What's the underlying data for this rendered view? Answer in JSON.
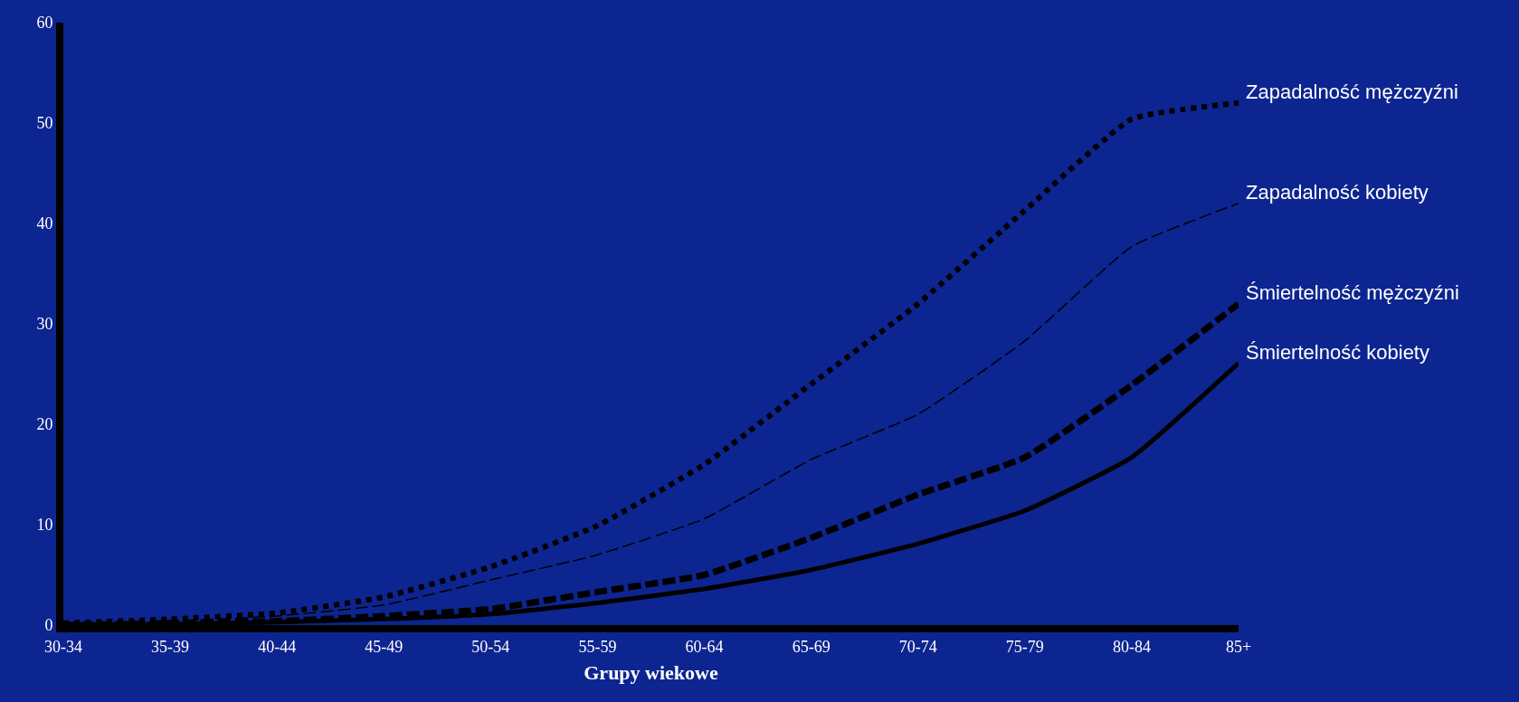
{
  "chart_data": {
    "type": "line",
    "xlabel": "Grupy wiekowe",
    "categories": [
      "30-34",
      "35-39",
      "40-44",
      "45-49",
      "50-54",
      "55-59",
      "60-64",
      "65-69",
      "70-74",
      "75-79",
      "80-84",
      "85+"
    ],
    "series": [
      {
        "name": "Zapadalność mężczyźni",
        "color": "#000000",
        "line_style": "dotted",
        "values": [
          0.2,
          0.6,
          1.2,
          2.8,
          5.8,
          9.9,
          16,
          24,
          32,
          41.3,
          50.4,
          52
        ]
      },
      {
        "name": "Zapadalność kobiety",
        "color": "#000000",
        "line_style": "dashed",
        "values": [
          0.1,
          0.4,
          0.9,
          2,
          4.5,
          7,
          10.6,
          16.5,
          21,
          28.3,
          37.7,
          42
        ]
      },
      {
        "name": "Śmiertelność mężczyźni",
        "color": "#000000",
        "line_style": "dashed",
        "values": [
          0,
          0.2,
          0.4,
          0.9,
          1.6,
          3.3,
          5,
          8.7,
          13,
          16.7,
          23.9,
          32
        ]
      },
      {
        "name": "Śmiertelność kobiety",
        "color": "#000000",
        "line_style": "solid",
        "values": [
          0,
          0.1,
          0.3,
          0.6,
          1.1,
          2.2,
          3.6,
          5.5,
          8.1,
          11.4,
          16.7,
          26.1
        ]
      }
    ],
    "ylim": [
      0,
      60
    ],
    "yticks": [
      0,
      10,
      20,
      30,
      40,
      50,
      60
    ],
    "grid": false,
    "legend": false,
    "marker": "none"
  }
}
